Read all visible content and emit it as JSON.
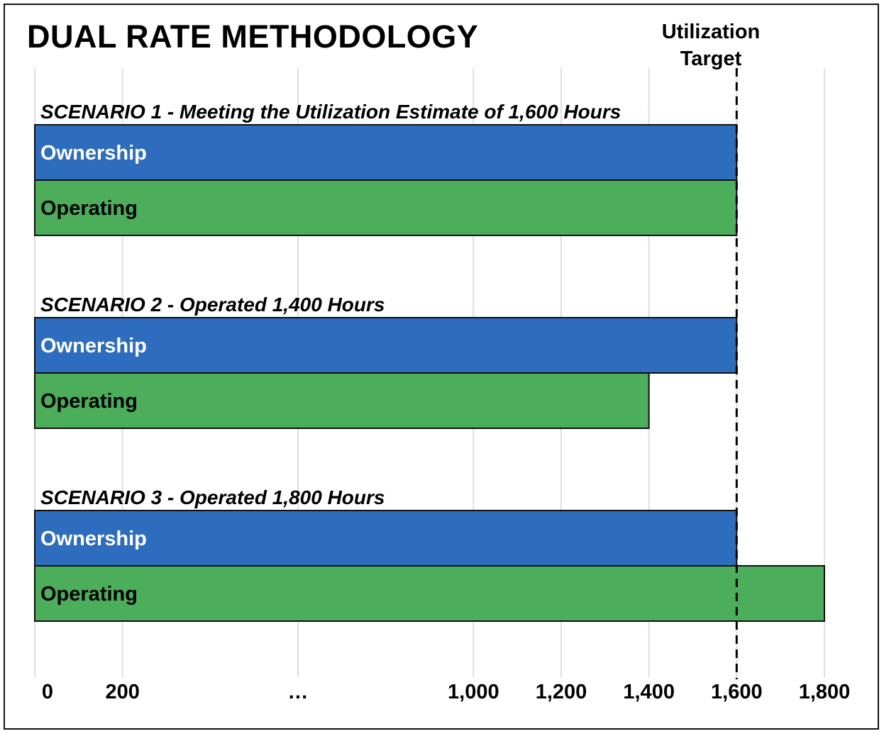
{
  "chart_data": {
    "type": "bar",
    "orientation": "horizontal",
    "title": "DUAL RATE METHODOLOGY",
    "reference_line": {
      "label_line1": "Utilization",
      "label_line2": "Target",
      "value": 1600,
      "style": "dashed"
    },
    "x_ticks": [
      {
        "label": "0",
        "pos": 0
      },
      {
        "label": "200",
        "pos": 200
      },
      {
        "label": "…",
        "pos": 600
      },
      {
        "label": "1,000",
        "pos": 1000
      },
      {
        "label": "1,200",
        "pos": 1200
      },
      {
        "label": "1,400",
        "pos": 1400
      },
      {
        "label": "1,600",
        "pos": 1600
      },
      {
        "label": "1,800",
        "pos": 1800
      }
    ],
    "xlim": [
      0,
      1800
    ],
    "grid": true,
    "colors": {
      "Ownership": "#2e6dbd",
      "Operating": "#4cad5b"
    },
    "label_colors": {
      "Ownership": "#ffffff",
      "Operating": "#000000"
    },
    "groups": [
      {
        "label": "SCENARIO 1 - Meeting the Utilization Estimate of 1,600 Hours",
        "bars": [
          {
            "name": "Ownership",
            "value": 1600
          },
          {
            "name": "Operating",
            "value": 1600
          }
        ]
      },
      {
        "label": "SCENARIO 2 - Operated 1,400 Hours",
        "bars": [
          {
            "name": "Ownership",
            "value": 1600
          },
          {
            "name": "Operating",
            "value": 1400
          }
        ]
      },
      {
        "label": "SCENARIO 3 - Operated 1,800 Hours",
        "bars": [
          {
            "name": "Ownership",
            "value": 1600
          },
          {
            "name": "Operating",
            "value": 1800
          }
        ]
      }
    ]
  }
}
